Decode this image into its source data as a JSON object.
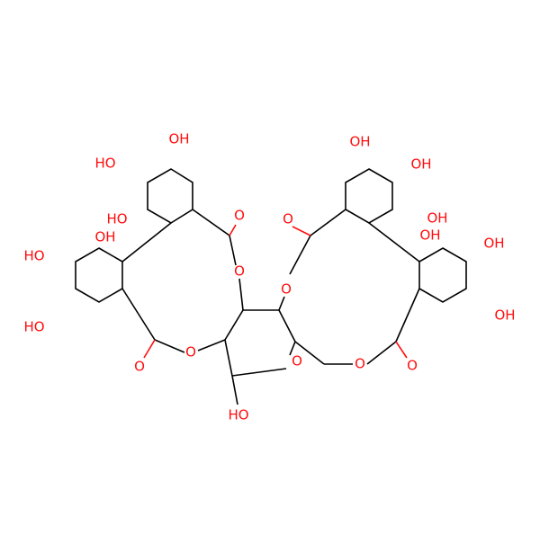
{
  "atoms": [
    {
      "label": "OH"
    },
    {
      "label": "HO"
    },
    {
      "label": "HO"
    },
    {
      "label": "OH"
    },
    {
      "label": "HO"
    },
    {
      "label": "HO"
    },
    {
      "label": "O"
    },
    {
      "label": "O"
    },
    {
      "label": "O"
    },
    {
      "label": "O"
    },
    {
      "label": "HO"
    },
    {
      "label": "O"
    },
    {
      "label": "O"
    },
    {
      "label": "O"
    },
    {
      "label": "O"
    },
    {
      "label": "O"
    },
    {
      "label": "OH"
    },
    {
      "label": "OH"
    },
    {
      "label": "OH"
    },
    {
      "label": "OH"
    },
    {
      "label": "OH"
    },
    {
      "label": "OH"
    }
  ]
}
